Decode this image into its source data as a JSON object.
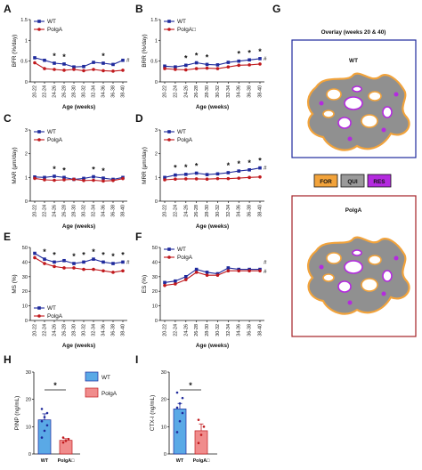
{
  "panel_labels": [
    "A",
    "B",
    "C",
    "D",
    "E",
    "F",
    "G",
    "H",
    "I"
  ],
  "legend": {
    "wt": "WT",
    "polga": "PolgA",
    "polga_b": "PolgA□"
  },
  "colors": {
    "wt": "#1f2a9c",
    "polga": "#c0191d",
    "wt_bar": "#5aa9e6",
    "polga_bar": "#f08c8c",
    "for": "#f2a33b",
    "qui": "#9a9a9a",
    "res": "#b42adf",
    "scaffold": "#909090",
    "wt_frame": "#1f2a9c",
    "polga_frame": "#a32026"
  },
  "overlay": {
    "title": "Overlay (weeks 20 & 40)",
    "wt_label": "WT",
    "polga_label": "PolgA",
    "for": "FOR",
    "qui": "QUI",
    "res": "RES"
  },
  "bar_legend": {
    "wt": "WT",
    "polga": "PolgA"
  },
  "chart_data": [
    {
      "id": "A",
      "type": "line",
      "ylabel": "BFR (%/day)",
      "xlabel": "Age (weeks)",
      "ylim": [
        0,
        1.5
      ],
      "yticks": [
        0,
        0.5,
        1,
        1.5
      ],
      "categories": [
        "20-22",
        "22-24",
        "24-26",
        "26-28",
        "28-30",
        "30-32",
        "32-34",
        "34-36",
        "36-38",
        "38-40"
      ],
      "series": [
        {
          "name": "WT",
          "values": [
            0.58,
            0.52,
            0.45,
            0.43,
            0.36,
            0.37,
            0.47,
            0.45,
            0.42,
            0.52
          ]
        },
        {
          "name": "PolgA",
          "values": [
            0.46,
            0.32,
            0.3,
            0.28,
            0.3,
            0.27,
            0.3,
            0.27,
            0.26,
            0.28
          ]
        }
      ],
      "stars": [
        2,
        3,
        7
      ],
      "end_mark": "#",
      "legend_pos": "top-left",
      "legend_labels": [
        "WT",
        "PolgA"
      ]
    },
    {
      "id": "B",
      "type": "line",
      "ylabel": "BRR (%/day)",
      "xlabel": "Age (weeks)",
      "ylim": [
        0,
        1.5
      ],
      "yticks": [
        0,
        0.5,
        1,
        1.5
      ],
      "categories": [
        "20-22",
        "22-24",
        "24-26",
        "26-28",
        "28-30",
        "30-32",
        "32-34",
        "34-36",
        "36-38",
        "38-40"
      ],
      "series": [
        {
          "name": "WT",
          "values": [
            0.38,
            0.36,
            0.4,
            0.46,
            0.42,
            0.41,
            0.47,
            0.5,
            0.53,
            0.56
          ]
        },
        {
          "name": "PolgA",
          "values": [
            0.32,
            0.3,
            0.29,
            0.32,
            0.33,
            0.32,
            0.36,
            0.4,
            0.41,
            0.43
          ]
        }
      ],
      "stars": [
        2,
        3,
        4,
        7,
        8,
        9
      ],
      "end_mark": "#",
      "legend_pos": "top-left",
      "legend_labels": [
        "WT",
        "PolgA□"
      ]
    },
    {
      "id": "C",
      "type": "line",
      "ylabel": "MAR (μm/day)",
      "xlabel": "Age (weeks)",
      "ylim": [
        0,
        3
      ],
      "yticks": [
        0,
        1,
        2,
        3
      ],
      "categories": [
        "20-22",
        "22-24",
        "24-26",
        "26-28",
        "28-30",
        "30-32",
        "32-34",
        "34-36",
        "36-38",
        "38-40"
      ],
      "series": [
        {
          "name": "WT",
          "values": [
            1.02,
            1.0,
            1.05,
            1.0,
            0.92,
            0.96,
            1.03,
            0.97,
            0.92,
            1.0
          ]
        },
        {
          "name": "PolgA",
          "values": [
            0.96,
            0.9,
            0.88,
            0.9,
            0.92,
            0.87,
            0.88,
            0.85,
            0.87,
            0.95
          ]
        }
      ],
      "stars": [
        2,
        3,
        6,
        7
      ],
      "end_mark": "",
      "legend_pos": "top-left",
      "legend_labels": [
        "WT",
        "PolgA"
      ]
    },
    {
      "id": "D",
      "type": "line",
      "ylabel": "MRR (μm/day)",
      "xlabel": "Age (weeks)",
      "ylim": [
        0,
        3
      ],
      "yticks": [
        0,
        1,
        2,
        3
      ],
      "categories": [
        "20-22",
        "22-24",
        "24-26",
        "26-28",
        "28-30",
        "30-32",
        "32-34",
        "34-36",
        "36-38",
        "38-40"
      ],
      "series": [
        {
          "name": "WT",
          "values": [
            1.0,
            1.1,
            1.13,
            1.18,
            1.12,
            1.15,
            1.2,
            1.27,
            1.32,
            1.4
          ]
        },
        {
          "name": "PolgA",
          "values": [
            0.9,
            0.93,
            0.94,
            0.94,
            0.93,
            0.95,
            0.95,
            0.97,
            1.0,
            1.02
          ]
        }
      ],
      "stars": [
        1,
        2,
        3,
        6,
        7,
        8,
        9
      ],
      "end_mark": "#",
      "legend_pos": "top-left",
      "legend_labels": [
        "WT",
        "PolgA"
      ]
    },
    {
      "id": "E",
      "type": "line",
      "ylabel": "MS (%)",
      "xlabel": "Age (weeks)",
      "ylim": [
        0,
        50
      ],
      "yticks": [
        0,
        10,
        20,
        30,
        40,
        50
      ],
      "categories": [
        "20-22",
        "22-24",
        "24-26",
        "26-28",
        "28-30",
        "30-32",
        "32-34",
        "34-36",
        "36-38",
        "38-40"
      ],
      "series": [
        {
          "name": "WT",
          "values": [
            46,
            42,
            40,
            41,
            39,
            40,
            42,
            40,
            39,
            40
          ]
        },
        {
          "name": "PolgA",
          "values": [
            43,
            39,
            37,
            36,
            36,
            35,
            35,
            34,
            33,
            34
          ]
        }
      ],
      "stars": [
        1,
        2,
        4,
        5,
        6,
        7,
        8,
        9
      ],
      "end_mark": "#",
      "legend_pos": "bottom-left",
      "legend_labels": [
        "WT",
        "PolgA"
      ]
    },
    {
      "id": "F",
      "type": "line",
      "ylabel": "ES (%)",
      "xlabel": "Age (weeks)",
      "ylim": [
        0,
        50
      ],
      "yticks": [
        0,
        10,
        20,
        30,
        40,
        50
      ],
      "categories": [
        "20-22",
        "22-24",
        "24-26",
        "26-28",
        "28-30",
        "30-32",
        "32-34",
        "34-36",
        "36-38",
        "38-40"
      ],
      "series": [
        {
          "name": "WT",
          "values": [
            26,
            27,
            30,
            35,
            33,
            32,
            36,
            35,
            35,
            35
          ]
        },
        {
          "name": "PolgA",
          "values": [
            24,
            25,
            28,
            33,
            31,
            31,
            34,
            34,
            34,
            34
          ]
        }
      ],
      "stars": [],
      "end_mark": "#",
      "legend_pos": "top-left",
      "legend_labels": [
        "WT",
        "PolgA"
      ]
    },
    {
      "id": "H",
      "type": "bar",
      "ylabel": "PINP (ng/mL)",
      "ylim": [
        0,
        30
      ],
      "yticks": [
        0,
        10,
        20,
        30
      ],
      "categories": [
        "WT",
        "PolgA□"
      ],
      "values": [
        12.5,
        5.0
      ],
      "errors": [
        2.2,
        0.6
      ],
      "points": [
        [
          6.0,
          8.5,
          10.5,
          12.0,
          13.5,
          15.0,
          16.5
        ],
        [
          4.2,
          4.8,
          5.5,
          6.0
        ]
      ],
      "significance": "*"
    },
    {
      "id": "I",
      "type": "bar",
      "ylabel": "CTX-I (ng/mL)",
      "ylim": [
        0,
        30
      ],
      "yticks": [
        0,
        10,
        20,
        30
      ],
      "categories": [
        "WT",
        "PolgA□"
      ],
      "values": [
        16.5,
        8.5
      ],
      "errors": [
        2.0,
        2.5
      ],
      "points": [
        [
          8.0,
          12.0,
          15.0,
          17.0,
          18.5,
          20.5,
          22.5
        ],
        [
          4.0,
          7.0,
          10.0,
          12.5
        ]
      ],
      "significance": "*"
    }
  ]
}
